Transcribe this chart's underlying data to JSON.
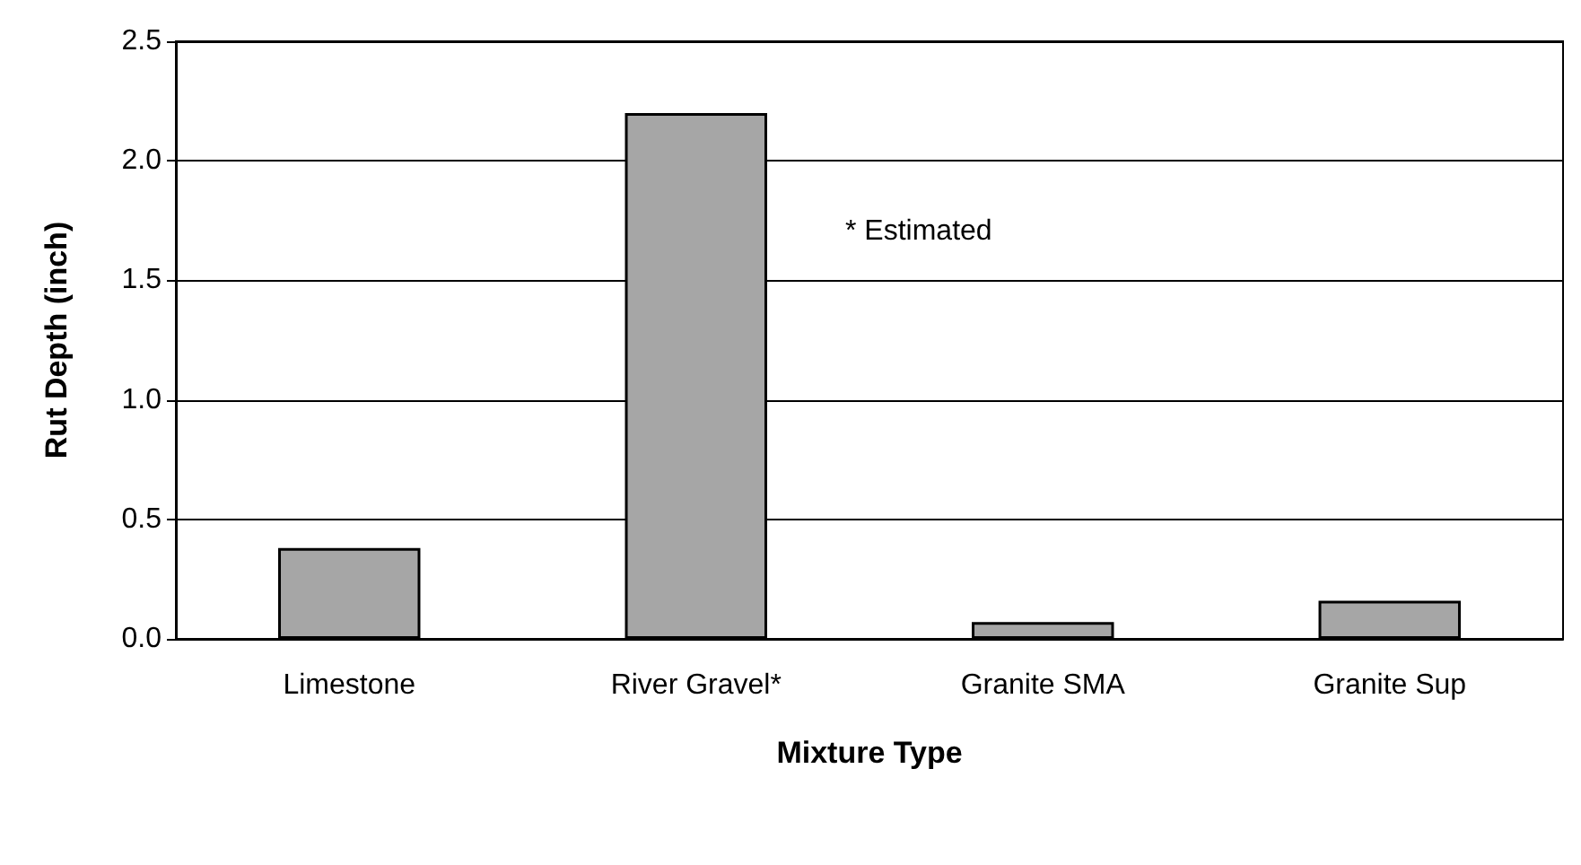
{
  "chart_data": {
    "type": "bar",
    "xlabel": "Mixture Type",
    "ylabel": "Rut Depth (inch)",
    "categories": [
      "Limestone",
      "River Gravel*",
      "Granite SMA",
      "Granite Sup"
    ],
    "values": [
      0.38,
      2.2,
      0.07,
      0.16
    ],
    "color": "#a6a6a6",
    "ylim": [
      0,
      2.5
    ],
    "yticks": [
      {
        "value": 0,
        "label": "0.0"
      },
      {
        "value": 0.5,
        "label": "0.5"
      },
      {
        "value": 1,
        "label": "1.0"
      },
      {
        "value": 1.5,
        "label": "1.5"
      },
      {
        "value": 2,
        "label": "2.0"
      },
      {
        "value": 2.5,
        "label": "2.5"
      }
    ],
    "grid": "y",
    "annotations": [
      "* Estimated"
    ]
  }
}
